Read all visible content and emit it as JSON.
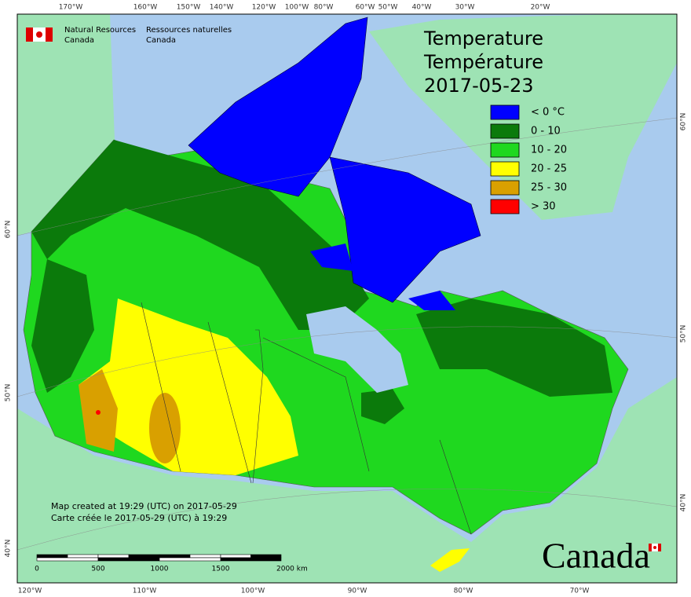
{
  "header": {
    "agency_en": [
      "Natural Resources",
      "Canada"
    ],
    "agency_fr": [
      "Ressources naturelles",
      "Canada"
    ]
  },
  "title": [
    "Temperature",
    "Température",
    "2017-05-23"
  ],
  "legend": [
    {
      "label": "< 0 °C",
      "color": "#0000ff"
    },
    {
      "label": "0 - 10",
      "color": "#0b7a0b"
    },
    {
      "label": "10 - 20",
      "color": "#1fd81f"
    },
    {
      "label": "20 - 25",
      "color": "#ffff00"
    },
    {
      "label": "25 - 30",
      "color": "#d9a000"
    },
    {
      "label": "> 30",
      "color": "#ff0000"
    }
  ],
  "graticule": {
    "top": [
      "170°W",
      "160°W",
      "150°W",
      "140°W",
      "120°W",
      "100°W",
      "80°W",
      "60°W",
      "50°W",
      "40°W",
      "30°W",
      "20°W"
    ],
    "bottom": [
      "120°W",
      "110°W",
      "100°W",
      "90°W",
      "80°W",
      "70°W"
    ],
    "left": [
      "60°N",
      "50°N",
      "40°N"
    ],
    "right": [
      "60°N",
      "50°N",
      "40°N"
    ]
  },
  "credits": [
    "Map created at 19:29 (UTC) on 2017-05-29",
    "Carte créée le 2017-05-29 (UTC) à 19:29"
  ],
  "scale": [
    "0",
    "500",
    "1000",
    "1500",
    "2000 km"
  ],
  "wordmark": "Canada"
}
